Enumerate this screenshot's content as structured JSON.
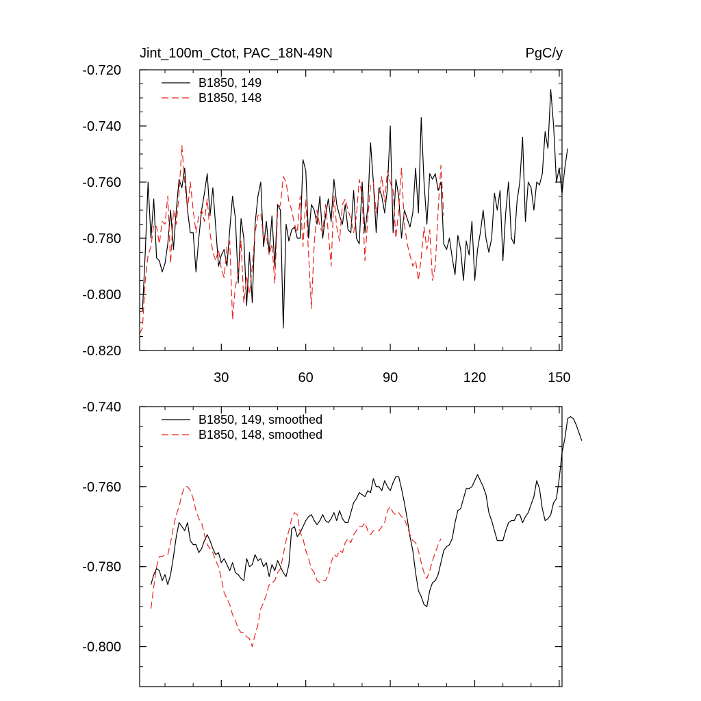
{
  "colors": {
    "series_149": "#000000",
    "series_148": "#e8241f",
    "axis": "#000000",
    "background": "#ffffff"
  },
  "chart_data": [
    {
      "type": "line",
      "title_left": "Jint_100m_Ctot, PAC_18N-49N",
      "title_right": "PgC/y",
      "xlim": [
        1,
        151
      ],
      "ylim": [
        -0.82,
        -0.72
      ],
      "x_ticks": [
        30,
        60,
        90,
        120,
        150
      ],
      "x_tick_labels": [
        "30",
        "60",
        "90",
        "120",
        "150"
      ],
      "y_ticks": [
        -0.72,
        -0.74,
        -0.76,
        -0.78,
        -0.8,
        -0.82
      ],
      "y_tick_labels": [
        "-0.720",
        "-0.740",
        "-0.760",
        "-0.780",
        "-0.800",
        "-0.820"
      ],
      "legend_position": "top-left",
      "grid": false,
      "series": [
        {
          "name": "B1850, 149",
          "style": "solid",
          "color": "#000000",
          "x_start": 1,
          "values": [
            -0.806,
            -0.806,
            -0.785,
            -0.76,
            -0.78,
            -0.766,
            -0.787,
            -0.788,
            -0.792,
            -0.789,
            -0.782,
            -0.77,
            -0.784,
            -0.77,
            -0.759,
            -0.762,
            -0.755,
            -0.77,
            -0.778,
            -0.778,
            -0.792,
            -0.78,
            -0.77,
            -0.764,
            -0.757,
            -0.772,
            -0.762,
            -0.776,
            -0.79,
            -0.786,
            -0.784,
            -0.79,
            -0.777,
            -0.765,
            -0.773,
            -0.796,
            -0.773,
            -0.78,
            -0.804,
            -0.785,
            -0.803,
            -0.775,
            -0.765,
            -0.76,
            -0.783,
            -0.774,
            -0.785,
            -0.772,
            -0.79,
            -0.768,
            -0.77,
            -0.812,
            -0.775,
            -0.781,
            -0.777,
            -0.776,
            -0.78,
            -0.78,
            -0.752,
            -0.756,
            -0.78,
            -0.768,
            -0.77,
            -0.775,
            -0.765,
            -0.78,
            -0.772,
            -0.766,
            -0.774,
            -0.759,
            -0.768,
            -0.772,
            -0.775,
            -0.768,
            -0.777,
            -0.778,
            -0.763,
            -0.78,
            -0.782,
            -0.76,
            -0.778,
            -0.769,
            -0.746,
            -0.76,
            -0.778,
            -0.762,
            -0.765,
            -0.771,
            -0.762,
            -0.74,
            -0.778,
            -0.759,
            -0.765,
            -0.78,
            -0.77,
            -0.773,
            -0.776,
            -0.771,
            -0.755,
            -0.771,
            -0.737,
            -0.76,
            -0.775,
            -0.757,
            -0.759,
            -0.757,
            -0.763,
            -0.76,
            -0.782,
            -0.784,
            -0.78,
            -0.787,
            -0.793,
            -0.779,
            -0.784,
            -0.795,
            -0.781,
            -0.786,
            -0.774,
            -0.795,
            -0.784,
            -0.778,
            -0.77,
            -0.78,
            -0.785,
            -0.78,
            -0.764,
            -0.77,
            -0.763,
            -0.788,
            -0.771,
            -0.76,
            -0.78,
            -0.782,
            -0.767,
            -0.76,
            -0.744,
            -0.774,
            -0.76,
            -0.762,
            -0.77,
            -0.76,
            -0.761,
            -0.757,
            -0.742,
            -0.748,
            -0.727,
            -0.74,
            -0.76,
            -0.755,
            -0.764,
            -0.755,
            -0.748
          ]
        },
        {
          "name": "B1850, 148",
          "style": "dashed",
          "color": "#e8241f",
          "x_start": 1,
          "values": [
            -0.814,
            -0.812,
            -0.795,
            -0.786,
            -0.783,
            -0.775,
            -0.776,
            -0.782,
            -0.774,
            -0.775,
            -0.765,
            -0.789,
            -0.77,
            -0.775,
            -0.764,
            -0.747,
            -0.76,
            -0.77,
            -0.76,
            -0.77,
            -0.778,
            -0.772,
            -0.77,
            -0.774,
            -0.766,
            -0.778,
            -0.785,
            -0.788,
            -0.784,
            -0.791,
            -0.794,
            -0.783,
            -0.781,
            -0.809,
            -0.797,
            -0.793,
            -0.781,
            -0.803,
            -0.794,
            -0.8,
            -0.79,
            -0.778,
            -0.772,
            -0.771,
            -0.78,
            -0.779,
            -0.786,
            -0.782,
            -0.796,
            -0.77,
            -0.768,
            -0.758,
            -0.76,
            -0.767,
            -0.77,
            -0.775,
            -0.778,
            -0.765,
            -0.783,
            -0.766,
            -0.786,
            -0.805,
            -0.782,
            -0.77,
            -0.776,
            -0.778,
            -0.768,
            -0.778,
            -0.79,
            -0.765,
            -0.776,
            -0.781,
            -0.768,
            -0.766,
            -0.77,
            -0.773,
            -0.778,
            -0.772,
            -0.759,
            -0.765,
            -0.788,
            -0.773,
            -0.761,
            -0.76,
            -0.771,
            -0.765,
            -0.758,
            -0.767,
            -0.756,
            -0.76,
            -0.763,
            -0.78,
            -0.77,
            -0.755,
            -0.775,
            -0.782,
            -0.786,
            -0.79,
            -0.788,
            -0.795,
            -0.787,
            -0.776,
            -0.784,
            -0.777,
            -0.795,
            -0.79,
            -0.77,
            -0.754,
            -0.772
          ]
        }
      ]
    },
    {
      "type": "line",
      "xlim": [
        1,
        151
      ],
      "ylim": [
        -0.81,
        -0.74
      ],
      "x_ticks": [
        30,
        60,
        90,
        120,
        150
      ],
      "y_ticks": [
        -0.74,
        -0.76,
        -0.78,
        -0.8
      ],
      "y_tick_labels": [
        "-0.740",
        "-0.760",
        "-0.780",
        "-0.800"
      ],
      "legend_position": "top-left",
      "grid": false,
      "series": [
        {
          "name": "B1850, 149, smoothed",
          "style": "solid",
          "color": "#000000",
          "x_start": 5,
          "values": [
            -0.7845,
            -0.782,
            -0.7805,
            -0.781,
            -0.7835,
            -0.782,
            -0.7845,
            -0.782,
            -0.7775,
            -0.7725,
            -0.769,
            -0.77,
            -0.771,
            -0.769,
            -0.7735,
            -0.7745,
            -0.7745,
            -0.7765,
            -0.7755,
            -0.7735,
            -0.772,
            -0.7735,
            -0.7755,
            -0.777,
            -0.7765,
            -0.779,
            -0.778,
            -0.7795,
            -0.781,
            -0.779,
            -0.7815,
            -0.782,
            -0.783,
            -0.7835,
            -0.778,
            -0.78,
            -0.7795,
            -0.777,
            -0.7785,
            -0.778,
            -0.78,
            -0.779,
            -0.7825,
            -0.7795,
            -0.781,
            -0.7785,
            -0.78,
            -0.7815,
            -0.7825,
            -0.7795,
            -0.7705,
            -0.77,
            -0.7725,
            -0.7715,
            -0.77,
            -0.7685,
            -0.7675,
            -0.767,
            -0.7685,
            -0.7695,
            -0.7685,
            -0.767,
            -0.7685,
            -0.769,
            -0.768,
            -0.7665,
            -0.7685,
            -0.766,
            -0.768,
            -0.769,
            -0.769,
            -0.7665,
            -0.764,
            -0.763,
            -0.7615,
            -0.762,
            -0.7625,
            -0.761,
            -0.7615,
            -0.758,
            -0.76,
            -0.76,
            -0.761,
            -0.7585,
            -0.76,
            -0.761,
            -0.759,
            -0.7575,
            -0.7575,
            -0.7605,
            -0.764,
            -0.768,
            -0.7725,
            -0.776,
            -0.7815,
            -0.786,
            -0.7875,
            -0.7895,
            -0.79,
            -0.786,
            -0.784,
            -0.7835,
            -0.782,
            -0.779,
            -0.776,
            -0.775,
            -0.7745,
            -0.773,
            -0.769,
            -0.766,
            -0.7655,
            -0.763,
            -0.7605,
            -0.7605,
            -0.76,
            -0.7585,
            -0.757,
            -0.7585,
            -0.76,
            -0.762,
            -0.7665,
            -0.7685,
            -0.771,
            -0.7735,
            -0.7735,
            -0.7735,
            -0.771,
            -0.769,
            -0.7685,
            -0.7685,
            -0.767,
            -0.767,
            -0.769,
            -0.7675,
            -0.7665,
            -0.7645,
            -0.7625,
            -0.7585,
            -0.7605,
            -0.7655,
            -0.7685,
            -0.768,
            -0.767,
            -0.764,
            -0.763,
            -0.758,
            -0.7515,
            -0.748,
            -0.743,
            -0.7425,
            -0.743,
            -0.7445,
            -0.7465,
            -0.7485
          ]
        },
        {
          "name": "B1850, 148, smoothed",
          "style": "dashed",
          "color": "#e8241f",
          "x_start": 5,
          "values": [
            -0.7905,
            -0.785,
            -0.78,
            -0.7775,
            -0.7775,
            -0.777,
            -0.777,
            -0.774,
            -0.77,
            -0.767,
            -0.765,
            -0.762,
            -0.76,
            -0.76,
            -0.761,
            -0.763,
            -0.766,
            -0.768,
            -0.769,
            -0.772,
            -0.7745,
            -0.7755,
            -0.7765,
            -0.7785,
            -0.78,
            -0.783,
            -0.7865,
            -0.788,
            -0.7895,
            -0.792,
            -0.7935,
            -0.7955,
            -0.7965,
            -0.7965,
            -0.7975,
            -0.798,
            -0.8,
            -0.797,
            -0.7945,
            -0.7905,
            -0.789,
            -0.787,
            -0.7845,
            -0.784,
            -0.7835,
            -0.7815,
            -0.7805,
            -0.777,
            -0.7735,
            -0.771,
            -0.768,
            -0.7665,
            -0.767,
            -0.7715,
            -0.773,
            -0.776,
            -0.778,
            -0.7805,
            -0.7815,
            -0.7835,
            -0.784,
            -0.7835,
            -0.7835,
            -0.782,
            -0.779,
            -0.777,
            -0.7775,
            -0.776,
            -0.7765,
            -0.774,
            -0.773,
            -0.774,
            -0.772,
            -0.771,
            -0.77,
            -0.77,
            -0.769,
            -0.771,
            -0.772,
            -0.771,
            -0.771,
            -0.771,
            -0.77,
            -0.769,
            -0.766,
            -0.765,
            -0.7665,
            -0.767,
            -0.7665,
            -0.7675,
            -0.768,
            -0.77,
            -0.772,
            -0.7735,
            -0.774,
            -0.776,
            -0.779,
            -0.7815,
            -0.783,
            -0.781,
            -0.7785,
            -0.7765,
            -0.7745,
            -0.773
          ]
        }
      ]
    }
  ]
}
